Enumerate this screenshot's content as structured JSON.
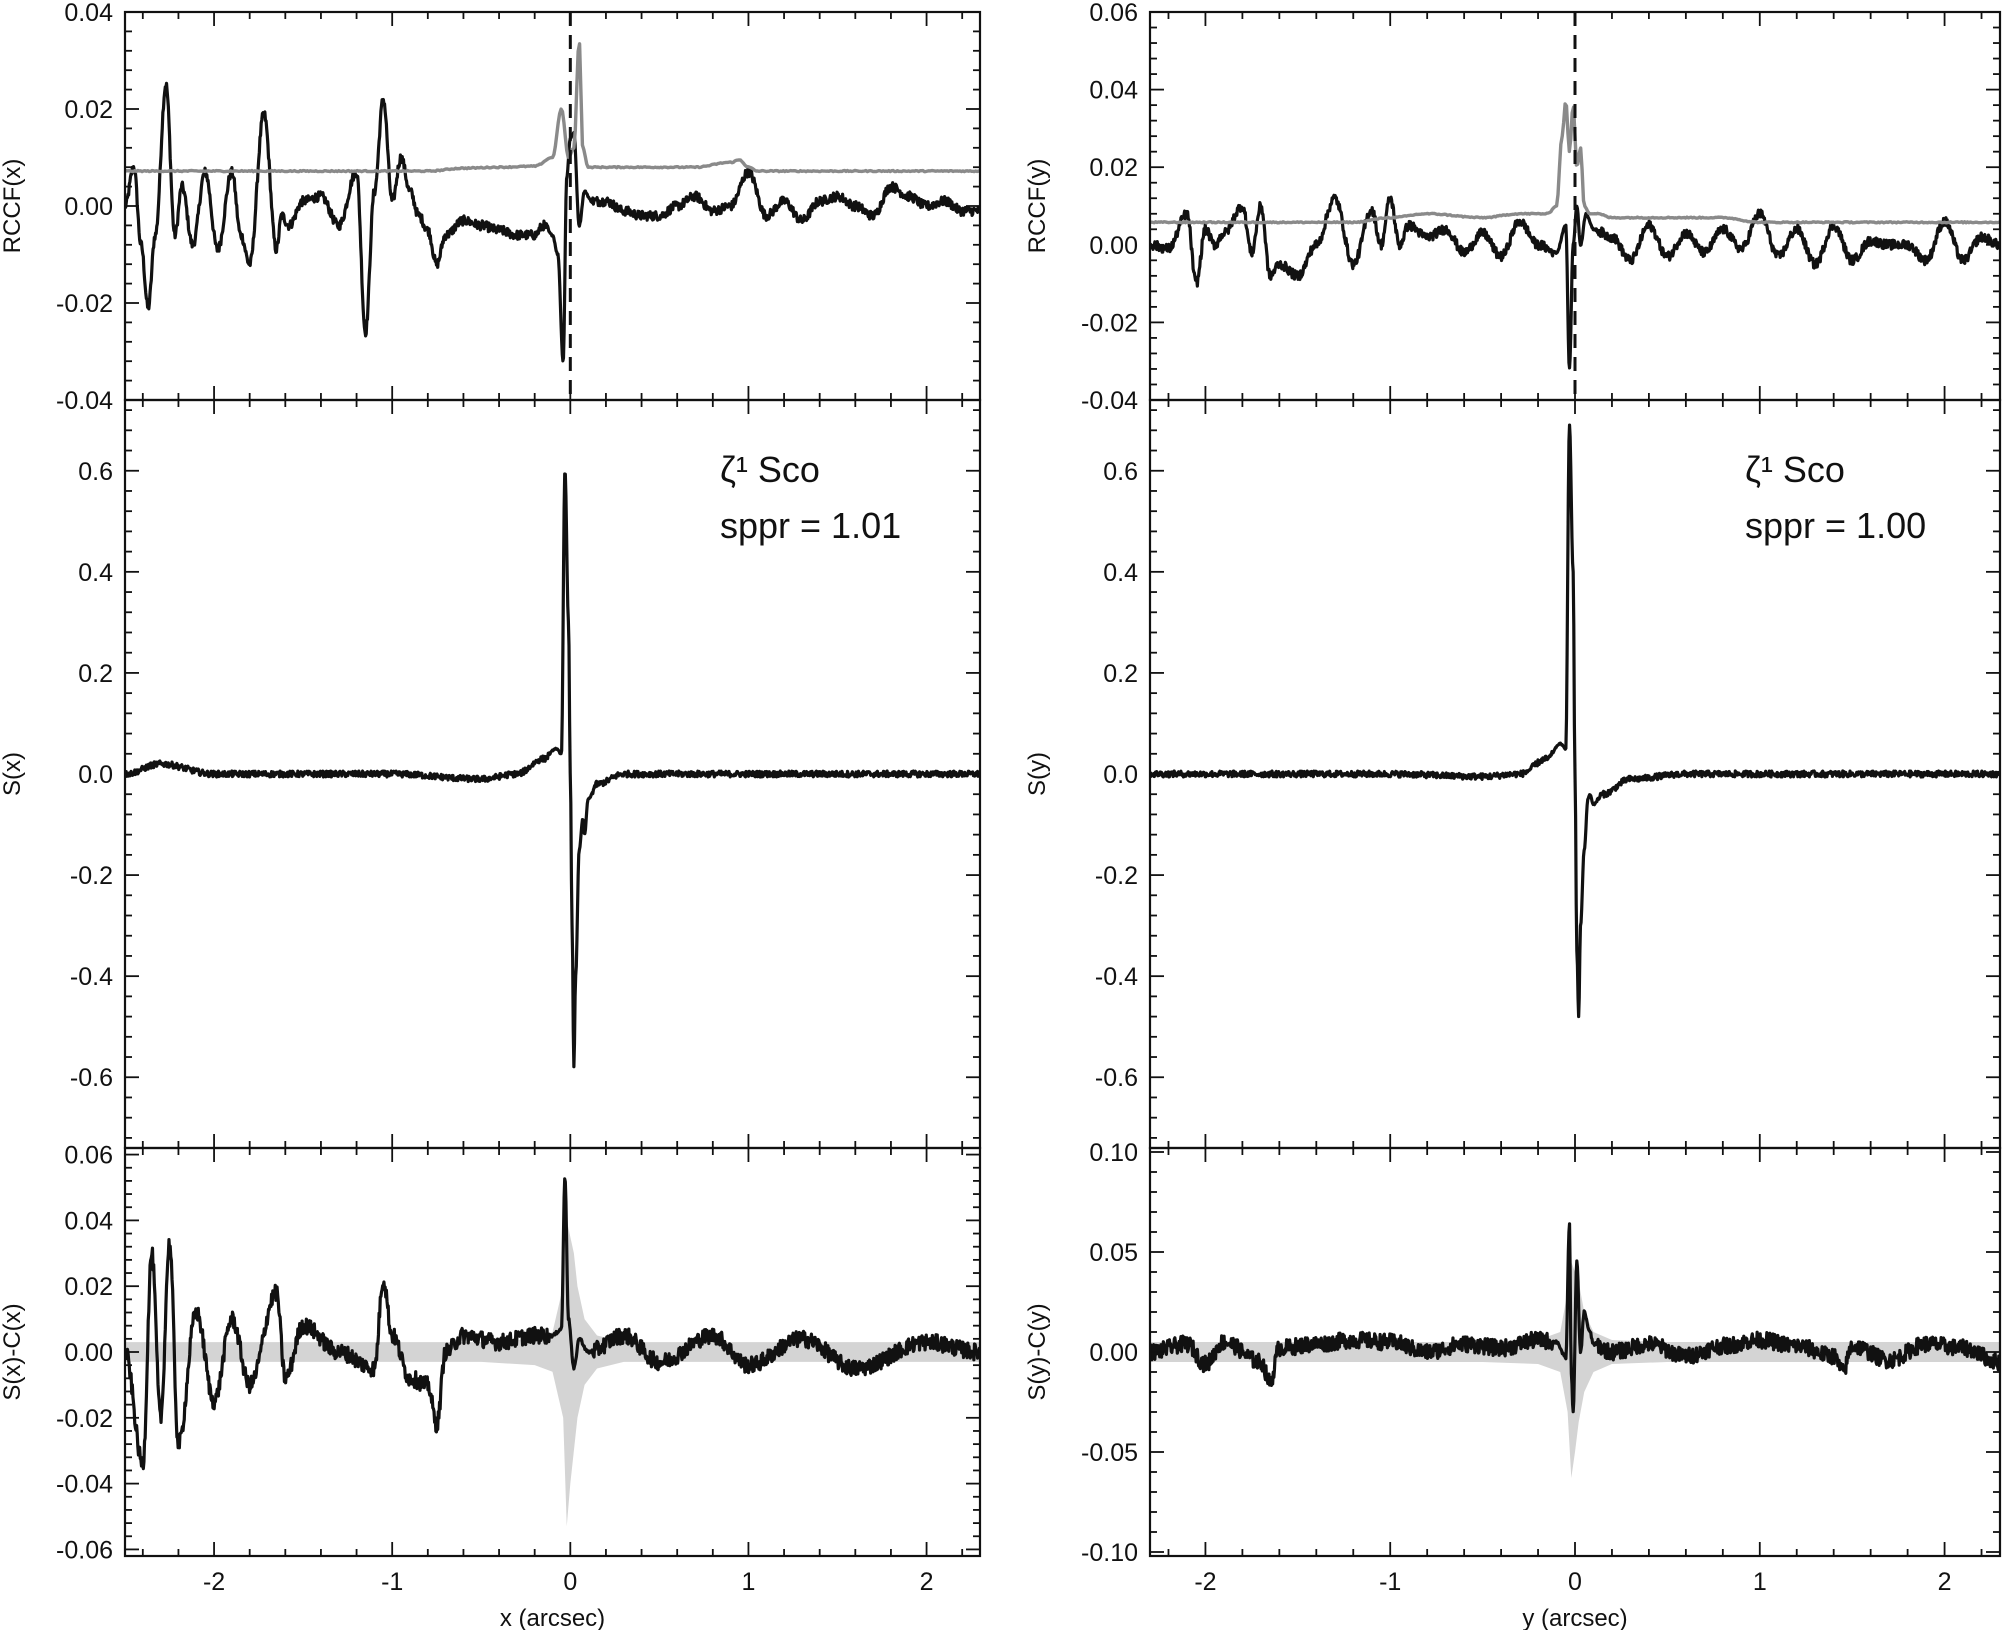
{
  "chart_data": [
    {
      "panel": "left-top",
      "type": "line",
      "ylabel": "RCCF(x)",
      "xlim": [
        -2.5,
        2.3
      ],
      "ylim": [
        -0.04,
        0.04
      ],
      "yticks": [
        "-0.04",
        "-0.02",
        "0.00",
        "0.02",
        "0.04"
      ],
      "series": [
        {
          "color": "#111111",
          "x": [
            -2.5,
            -2.45,
            -2.41,
            -2.37,
            -2.33,
            -2.27,
            -2.22,
            -2.18,
            -2.12,
            -2.05,
            -1.98,
            -1.9,
            -1.85,
            -1.8,
            -1.72,
            -1.65,
            -1.62,
            -1.58,
            -1.5,
            -1.4,
            -1.3,
            -1.2,
            -1.15,
            -1.1,
            -1.05,
            -1.0,
            -0.95,
            -0.9,
            -0.85,
            -0.8,
            -0.75,
            -0.7,
            -0.6,
            -0.5,
            -0.4,
            -0.3,
            -0.2,
            -0.15,
            -0.1,
            -0.07,
            -0.04,
            -0.02,
            0.0,
            0.02,
            0.05,
            0.08,
            0.12,
            0.2,
            0.3,
            0.4,
            0.5,
            0.6,
            0.7,
            0.8,
            0.9,
            1.0,
            1.1,
            1.2,
            1.3,
            1.4,
            1.5,
            1.6,
            1.7,
            1.8,
            1.9,
            2.0,
            2.1,
            2.2,
            2.3
          ],
          "y": [
            0.0,
            0.008,
            -0.008,
            -0.021,
            -0.006,
            0.025,
            -0.006,
            0.004,
            -0.008,
            0.007,
            -0.009,
            0.007,
            -0.006,
            -0.012,
            0.019,
            -0.009,
            -0.002,
            -0.004,
            0.001,
            0.002,
            -0.004,
            0.007,
            -0.026,
            0.003,
            0.022,
            0.001,
            0.01,
            0.003,
            -0.002,
            -0.005,
            -0.012,
            -0.006,
            -0.003,
            -0.004,
            -0.005,
            -0.006,
            -0.006,
            -0.004,
            -0.006,
            -0.01,
            -0.032,
            0.006,
            0.014,
            0.015,
            -0.004,
            0.003,
            0.001,
            0.001,
            -0.001,
            -0.002,
            -0.002,
            0.0,
            0.002,
            -0.001,
            0.0,
            0.007,
            -0.002,
            0.001,
            -0.003,
            0.001,
            0.002,
            0.0,
            -0.002,
            0.004,
            0.002,
            0.0,
            0.001,
            -0.001,
            -0.001
          ]
        },
        {
          "color": "#8a8a8a",
          "x": [
            -2.5,
            -0.8,
            -0.6,
            -0.4,
            -0.2,
            -0.1,
            -0.05,
            -0.01,
            0.02,
            0.05,
            0.07,
            0.1,
            0.15,
            0.3,
            0.5,
            0.7,
            0.9,
            0.95,
            1.0,
            1.05,
            1.5,
            2.3
          ],
          "y": [
            0.0072,
            0.0072,
            0.0078,
            0.008,
            0.0082,
            0.01,
            0.02,
            0.01,
            0.012,
            0.034,
            0.012,
            0.008,
            0.008,
            0.008,
            0.008,
            0.008,
            0.009,
            0.0095,
            0.008,
            0.0072,
            0.0072,
            0.0072
          ]
        }
      ],
      "vline_x": 0.0
    },
    {
      "panel": "left-middle",
      "type": "line",
      "ylabel": "S(x)",
      "xlim": [
        -2.5,
        2.3
      ],
      "ylim": [
        -0.74,
        0.74
      ],
      "yticks": [
        "-0.6",
        "-0.4",
        "-0.2",
        "0.0",
        "0.2",
        "0.4",
        "0.6"
      ],
      "annotation": {
        "star": "ζ¹ Sco",
        "sppr": "sppr = 1.01"
      },
      "series": [
        {
          "color": "#111111",
          "x": [
            -2.5,
            -2.3,
            -2.0,
            -1.5,
            -1.0,
            -0.5,
            -0.3,
            -0.15,
            -0.08,
            -0.05,
            -0.03,
            -0.01,
            0.0,
            0.01,
            0.02,
            0.03,
            0.05,
            0.07,
            0.08,
            0.1,
            0.15,
            0.3,
            0.6,
            1.0,
            1.5,
            2.0,
            2.3
          ],
          "y": [
            0.0,
            0.02,
            0.0,
            0.0,
            0.0,
            -0.01,
            0.0,
            0.03,
            0.05,
            0.04,
            0.6,
            0.3,
            0.0,
            -0.3,
            -0.58,
            -0.4,
            -0.15,
            -0.09,
            -0.12,
            -0.05,
            -0.02,
            0.0,
            0.0,
            0.0,
            0.0,
            0.0,
            0.0
          ]
        }
      ]
    },
    {
      "panel": "left-bottom",
      "type": "line",
      "ylabel": "S(x)-C(x)",
      "xlabel": "x (arcsec)",
      "xlim": [
        -2.5,
        2.3
      ],
      "ylim": [
        -0.062,
        0.062
      ],
      "xticks": [
        "-2",
        "-1",
        "0",
        "1",
        "2"
      ],
      "yticks": [
        "-0.06",
        "-0.04",
        "-0.02",
        "0.00",
        "0.02",
        "0.04",
        "0.06"
      ],
      "band": {
        "x": [
          -2.5,
          -1.0,
          -0.5,
          -0.2,
          -0.1,
          -0.04,
          -0.02,
          0.0,
          0.02,
          0.04,
          0.08,
          0.15,
          0.3,
          2.3
        ],
        "lo": [
          -0.003,
          -0.003,
          -0.003,
          -0.004,
          -0.006,
          -0.02,
          -0.053,
          -0.04,
          -0.03,
          -0.02,
          -0.01,
          -0.005,
          -0.003,
          -0.003
        ],
        "hi": [
          0.003,
          0.003,
          0.003,
          0.004,
          0.006,
          0.02,
          0.04,
          0.035,
          0.03,
          0.02,
          0.01,
          0.005,
          0.003,
          0.003
        ]
      },
      "series": [
        {
          "color": "#111111",
          "x": [
            -2.5,
            -2.4,
            -2.35,
            -2.3,
            -2.25,
            -2.2,
            -2.1,
            -2.0,
            -1.9,
            -1.8,
            -1.65,
            -1.6,
            -1.5,
            -1.3,
            -1.1,
            -1.05,
            -1.0,
            -0.9,
            -0.8,
            -0.75,
            -0.7,
            -0.6,
            -0.4,
            -0.2,
            -0.1,
            -0.05,
            -0.03,
            -0.01,
            0.02,
            0.05,
            0.1,
            0.3,
            0.5,
            0.8,
            1.0,
            1.3,
            1.6,
            2.0,
            2.3
          ],
          "y": [
            0.0,
            -0.034,
            0.03,
            -0.02,
            0.033,
            -0.028,
            0.012,
            -0.015,
            0.01,
            -0.01,
            0.018,
            -0.008,
            0.008,
            0.0,
            -0.005,
            0.022,
            0.005,
            -0.008,
            -0.01,
            -0.022,
            0.0,
            0.005,
            0.003,
            0.005,
            0.005,
            0.007,
            0.053,
            0.01,
            -0.005,
            0.004,
            0.0,
            0.005,
            -0.003,
            0.005,
            -0.004,
            0.004,
            -0.005,
            0.003,
            0.0
          ]
        }
      ]
    },
    {
      "panel": "right-top",
      "type": "line",
      "ylabel": "RCCF(y)",
      "xlim": [
        -2.3,
        2.3
      ],
      "ylim": [
        -0.04,
        0.06
      ],
      "yticks": [
        "-0.04",
        "-0.02",
        "0.00",
        "0.02",
        "0.04",
        "0.06"
      ],
      "series": [
        {
          "color": "#111111",
          "x": [
            -2.3,
            -2.2,
            -2.1,
            -2.05,
            -2.0,
            -1.95,
            -1.9,
            -1.8,
            -1.75,
            -1.7,
            -1.65,
            -1.6,
            -1.5,
            -1.4,
            -1.3,
            -1.2,
            -1.1,
            -1.05,
            -1.0,
            -0.95,
            -0.9,
            -0.8,
            -0.7,
            -0.6,
            -0.5,
            -0.4,
            -0.3,
            -0.2,
            -0.1,
            -0.05,
            -0.03,
            -0.01,
            0.01,
            0.03,
            0.06,
            0.1,
            0.2,
            0.3,
            0.4,
            0.5,
            0.6,
            0.7,
            0.8,
            0.9,
            1.0,
            1.1,
            1.2,
            1.3,
            1.4,
            1.5,
            1.6,
            1.7,
            1.8,
            1.9,
            2.0,
            2.1,
            2.2,
            2.3
          ],
          "y": [
            0.0,
            -0.001,
            0.008,
            -0.01,
            0.004,
            0.0,
            0.003,
            0.01,
            -0.002,
            0.01,
            -0.008,
            -0.005,
            -0.008,
            0.0,
            0.012,
            -0.005,
            0.009,
            0.0,
            0.012,
            0.0,
            0.005,
            0.002,
            0.004,
            -0.002,
            0.003,
            -0.003,
            0.006,
            0.0,
            -0.002,
            0.005,
            -0.032,
            0.0,
            0.01,
            0.0,
            0.008,
            0.004,
            0.002,
            -0.004,
            0.005,
            -0.003,
            0.003,
            -0.002,
            0.004,
            -0.001,
            0.008,
            -0.003,
            0.004,
            -0.005,
            0.005,
            -0.004,
            0.001,
            0.0,
            0.0,
            -0.004,
            0.006,
            -0.004,
            0.002,
            0.0
          ]
        },
        {
          "color": "#8a8a8a",
          "x": [
            -2.3,
            -1.2,
            -1.0,
            -0.8,
            -0.5,
            -0.3,
            -0.15,
            -0.1,
            -0.07,
            -0.05,
            -0.03,
            -0.01,
            0.01,
            0.03,
            0.05,
            0.08,
            0.12,
            0.2,
            0.5,
            0.8,
            1.0,
            2.3
          ],
          "y": [
            0.0058,
            0.0058,
            0.007,
            0.008,
            0.007,
            0.008,
            0.008,
            0.01,
            0.028,
            0.037,
            0.024,
            0.036,
            0.02,
            0.025,
            0.01,
            0.008,
            0.008,
            0.007,
            0.007,
            0.007,
            0.0058,
            0.0058
          ]
        }
      ],
      "vline_x": 0.0
    },
    {
      "panel": "right-middle",
      "type": "line",
      "ylabel": "S(y)",
      "xlim": [
        -2.3,
        2.3
      ],
      "ylim": [
        -0.74,
        0.74
      ],
      "yticks": [
        "-0.6",
        "-0.4",
        "-0.2",
        "0.0",
        "0.2",
        "0.4",
        "0.6"
      ],
      "annotation": {
        "star": "ζ¹ Sco",
        "sppr": "sppr = 1.00"
      },
      "series": [
        {
          "color": "#111111",
          "x": [
            -2.3,
            -2.0,
            -1.5,
            -1.0,
            -0.5,
            -0.3,
            -0.15,
            -0.08,
            -0.05,
            -0.03,
            -0.01,
            0.0,
            0.01,
            0.02,
            0.03,
            0.05,
            0.07,
            0.08,
            0.1,
            0.15,
            0.3,
            0.6,
            1.0,
            1.5,
            2.0,
            2.3
          ],
          "y": [
            0.0,
            0.0,
            0.0,
            0.0,
            -0.005,
            0.0,
            0.03,
            0.06,
            0.05,
            0.69,
            0.4,
            0.0,
            -0.35,
            -0.48,
            -0.3,
            -0.15,
            -0.05,
            -0.04,
            -0.06,
            -0.04,
            -0.01,
            0.0,
            0.0,
            0.0,
            0.0,
            0.0
          ]
        }
      ]
    },
    {
      "panel": "right-bottom",
      "type": "line",
      "ylabel": "S(y)-C(y)",
      "xlabel": "y (arcsec)",
      "xlim": [
        -2.3,
        2.3
      ],
      "ylim": [
        -0.102,
        0.102
      ],
      "xticks": [
        "-2",
        "-1",
        "0",
        "1",
        "2"
      ],
      "yticks": [
        "-0.10",
        "-0.05",
        "0.00",
        "0.05",
        "0.10"
      ],
      "band": {
        "x": [
          -2.3,
          -1.0,
          -0.5,
          -0.2,
          -0.08,
          -0.04,
          -0.02,
          0.0,
          0.02,
          0.05,
          0.1,
          0.2,
          0.5,
          2.3
        ],
        "lo": [
          -0.005,
          -0.005,
          -0.005,
          -0.006,
          -0.01,
          -0.03,
          -0.063,
          -0.05,
          -0.035,
          -0.02,
          -0.01,
          -0.006,
          -0.005,
          -0.005
        ],
        "hi": [
          0.005,
          0.005,
          0.005,
          0.006,
          0.01,
          0.03,
          0.045,
          0.04,
          0.035,
          0.02,
          0.01,
          0.006,
          0.005,
          0.005
        ]
      },
      "series": [
        {
          "color": "#111111",
          "x": [
            -2.3,
            -2.1,
            -2.0,
            -1.9,
            -1.7,
            -1.65,
            -1.6,
            -1.4,
            -1.2,
            -1.0,
            -0.8,
            -0.6,
            -0.4,
            -0.2,
            -0.1,
            -0.05,
            -0.03,
            -0.02,
            -0.01,
            0.01,
            0.03,
            0.05,
            0.08,
            0.1,
            0.2,
            0.4,
            0.6,
            0.8,
            1.0,
            1.2,
            1.4,
            1.45,
            1.5,
            1.7,
            1.9,
            2.1,
            2.3
          ],
          "y": [
            0.0,
            0.004,
            -0.006,
            0.005,
            -0.005,
            -0.015,
            0.002,
            0.004,
            0.006,
            0.005,
            0.0,
            0.004,
            0.002,
            0.006,
            0.005,
            -0.003,
            0.064,
            -0.01,
            -0.03,
            0.045,
            0.0,
            0.02,
            0.01,
            0.004,
            0.0,
            0.004,
            -0.002,
            0.003,
            0.006,
            0.003,
            -0.002,
            -0.01,
            0.003,
            -0.004,
            0.004,
            0.002,
            -0.005
          ]
        }
      ]
    }
  ]
}
